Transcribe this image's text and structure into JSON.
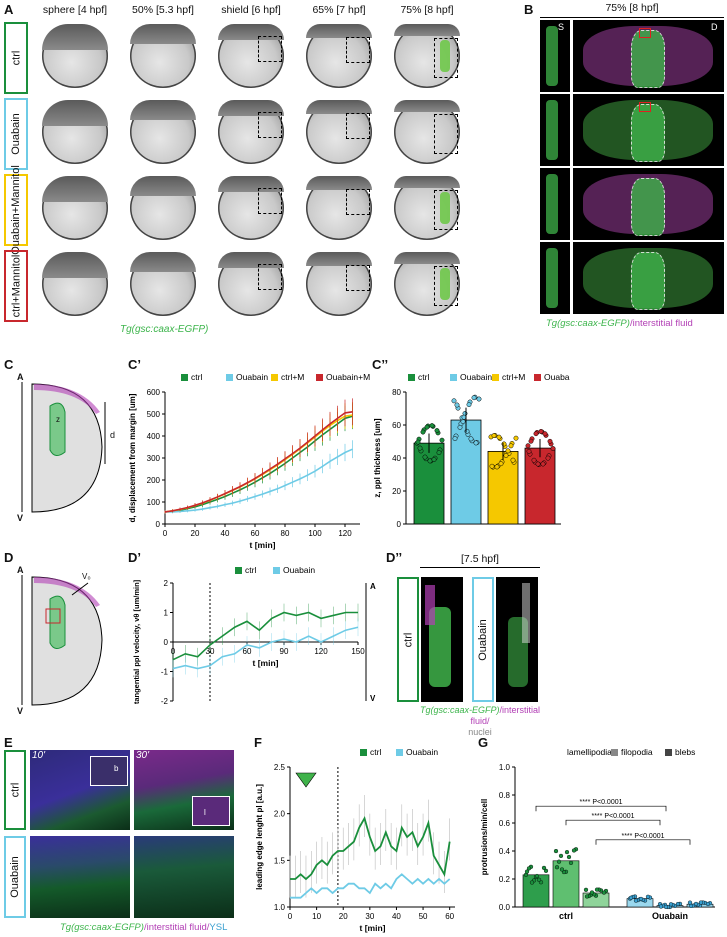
{
  "panel_letters": {
    "A": "A",
    "B": "B",
    "C": "C",
    "C1": "C’",
    "C2": "C’’",
    "D": "D",
    "D1": "D’",
    "D2": "D’’",
    "E": "E",
    "F": "F",
    "G": "G"
  },
  "panelA": {
    "columns": [
      "sphere [4 hpf]",
      "50% [5.3 hpf]",
      "shield [6 hpf]",
      "65% [7 hpf]",
      "75% [8 hpf]"
    ],
    "rows": [
      "ctrl",
      "Ouabain",
      "Ouabain+Mannitol",
      "ctrl+Mannitol"
    ],
    "transgene": "Tg(gsc:caax-EGFP)"
  },
  "panelB": {
    "title": "75% [8 hpf]",
    "view_s": "S",
    "view_d": "D",
    "caption_tg": "Tg(gsc:caax-EGFP)",
    "caption_fluid": "/interstitial fluid"
  },
  "schematic": {
    "a": "A",
    "v": "V",
    "d": "d",
    "z": "z",
    "vp": "V₀"
  },
  "panelD2": {
    "title": "[7.5 hpf]",
    "rows": [
      "ctrl",
      "Ouabain"
    ],
    "caption_tg": "Tg(gsc:caax-EGFP)",
    "caption_fluid": "/interstitial fluid/",
    "caption_nuclei": "nuclei"
  },
  "panelE": {
    "t1": "10'",
    "t2": "30'",
    "rows": [
      "ctrl",
      "Ouabain"
    ],
    "inset_b": "b",
    "inset_l": "l",
    "caption_tg": "Tg(gsc:caax-EGFP)",
    "caption_fluid": "/interstitial fluid/",
    "caption_ysl": "YSL"
  },
  "colors": {
    "ctrl": "#1a8f3c",
    "ouabain": "#6ecbe6",
    "ctrlM": "#f5c800",
    "ouabainM": "#c8272d",
    "magenta": "#b23fb5"
  },
  "chart_data": [
    {
      "id": "C1",
      "type": "line",
      "title": "",
      "xlabel": "t [min]",
      "ylabel": "d, displacement from margin [um]",
      "xlim": [
        0,
        130
      ],
      "ylim": [
        0,
        600
      ],
      "xticks": [
        0,
        20,
        40,
        60,
        80,
        100,
        120
      ],
      "yticks": [
        0,
        100,
        200,
        300,
        400,
        500,
        600
      ],
      "legend": [
        "ctrl",
        "Ouabain",
        "ctrl+M",
        "Ouabain+M"
      ],
      "x": [
        0,
        5,
        10,
        15,
        20,
        25,
        30,
        35,
        40,
        45,
        50,
        55,
        60,
        65,
        70,
        75,
        80,
        85,
        90,
        95,
        100,
        105,
        110,
        115,
        120,
        125
      ],
      "series": [
        {
          "name": "ctrl",
          "values": [
            55,
            58,
            62,
            70,
            78,
            88,
            100,
            112,
            125,
            140,
            155,
            172,
            190,
            210,
            230,
            252,
            275,
            300,
            325,
            350,
            378,
            405,
            430,
            455,
            480,
            490
          ]
        },
        {
          "name": "Ouabain",
          "values": [
            55,
            55,
            57,
            60,
            63,
            68,
            74,
            80,
            88,
            95,
            104,
            114,
            125,
            136,
            148,
            160,
            175,
            190,
            205,
            222,
            240,
            262,
            285,
            305,
            325,
            340
          ]
        },
        {
          "name": "ctrl+M",
          "values": [
            55,
            60,
            66,
            74,
            84,
            95,
            108,
            122,
            137,
            152,
            168,
            186,
            205,
            225,
            246,
            268,
            292,
            316,
            342,
            368,
            395,
            422,
            448,
            470,
            490,
            495
          ]
        },
        {
          "name": "Ouabain+M",
          "values": [
            55,
            60,
            67,
            75,
            85,
            96,
            109,
            123,
            138,
            154,
            170,
            188,
            207,
            228,
            250,
            272,
            296,
            320,
            345,
            372,
            400,
            428,
            455,
            480,
            505,
            510
          ]
        }
      ]
    },
    {
      "id": "C2",
      "type": "bar",
      "title": "",
      "xlabel": "",
      "ylabel": "z, ppl thickness [um]",
      "ylim": [
        0,
        80
      ],
      "yticks": [
        0,
        20,
        40,
        60,
        80
      ],
      "legend": [
        "ctrl",
        "Ouabain",
        "ctrl+M",
        "Ouabain+M"
      ],
      "categories": [
        "ctrl",
        "Ouabain",
        "ctrl+M",
        "Ouabain+M"
      ],
      "values": [
        49,
        63,
        44,
        46
      ]
    },
    {
      "id": "D1",
      "type": "line",
      "title": "",
      "xlabel": "t [min]",
      "ylabel": "tangential ppl velocity, vθ [um/min]",
      "xlim": [
        0,
        150
      ],
      "ylim": [
        -2,
        2
      ],
      "xticks": [
        0,
        30,
        60,
        90,
        120,
        150
      ],
      "yticks": [
        -2,
        -1,
        0,
        1,
        2
      ],
      "legend": [
        "ctrl",
        "Ouabain"
      ],
      "annotations": [
        "A",
        "V"
      ],
      "x": [
        0,
        10,
        20,
        30,
        40,
        50,
        60,
        70,
        80,
        90,
        100,
        110,
        120,
        130,
        140,
        150
      ],
      "series": [
        {
          "name": "ctrl",
          "values": [
            -0.6,
            -0.4,
            -0.5,
            -0.1,
            0.2,
            0.5,
            0.7,
            0.4,
            0.8,
            1.0,
            0.9,
            1.0,
            0.8,
            0.9,
            1.0,
            1.0
          ]
        },
        {
          "name": "Ouabain",
          "values": [
            -0.9,
            -0.8,
            -0.9,
            -0.8,
            -0.5,
            -0.4,
            -0.1,
            -0.2,
            0.0,
            0.1,
            0.0,
            0.2,
            0.0,
            0.2,
            0.4,
            0.5
          ]
        }
      ]
    },
    {
      "id": "F",
      "type": "line",
      "title": "",
      "xlabel": "t [min]",
      "ylabel": "leading edge lenght pl [a.u.]",
      "xlim": [
        0,
        62
      ],
      "ylim": [
        1.0,
        2.5
      ],
      "xticks": [
        0,
        10,
        20,
        30,
        40,
        50,
        60
      ],
      "yticks": [
        1.0,
        1.5,
        2.0,
        2.5
      ],
      "legend": [
        "ctrl",
        "Ouabain"
      ],
      "x": [
        0,
        2,
        4,
        6,
        8,
        10,
        12,
        14,
        16,
        18,
        20,
        22,
        24,
        26,
        28,
        30,
        32,
        34,
        36,
        38,
        40,
        42,
        44,
        46,
        48,
        50,
        52,
        54,
        56,
        58,
        60
      ],
      "series": [
        {
          "name": "ctrl",
          "values": [
            1.3,
            1.3,
            1.35,
            1.3,
            1.35,
            1.45,
            1.5,
            1.45,
            1.55,
            1.6,
            1.6,
            1.65,
            1.7,
            1.85,
            1.95,
            1.75,
            1.6,
            1.65,
            1.8,
            1.65,
            1.6,
            1.85,
            1.75,
            1.8,
            1.65,
            1.75,
            1.9,
            1.55,
            1.45,
            1.35,
            1.7
          ]
        },
        {
          "name": "Ouabain",
          "values": [
            1.1,
            1.1,
            1.1,
            1.15,
            1.2,
            1.15,
            1.2,
            1.2,
            1.15,
            1.2,
            1.2,
            1.25,
            1.25,
            1.2,
            1.2,
            1.15,
            1.25,
            1.2,
            1.25,
            1.2,
            1.3,
            1.35,
            1.3,
            1.25,
            1.3,
            1.25,
            1.3,
            1.25,
            1.3,
            1.25,
            1.3
          ]
        }
      ]
    },
    {
      "id": "G",
      "type": "bar",
      "title": "",
      "xlabel": "",
      "ylabel": "protrusions/min/cell",
      "ylim": [
        0,
        1.0
      ],
      "yticks": [
        0.0,
        0.2,
        0.4,
        0.6,
        0.8,
        1.0
      ],
      "legend": [
        "lamellipodia",
        "filopodia",
        "blebs"
      ],
      "groups": [
        "ctrl",
        "Ouabain"
      ],
      "series": [
        {
          "name": "lamellipodia",
          "values": [
            0.23,
            0.06
          ]
        },
        {
          "name": "filopodia",
          "values": [
            0.33,
            0.01
          ]
        },
        {
          "name": "blebs",
          "values": [
            0.1,
            0.02
          ]
        }
      ],
      "annotations": [
        "**** P<0.0001",
        "**** P<0.0001",
        "**** P<0.0001"
      ]
    }
  ]
}
